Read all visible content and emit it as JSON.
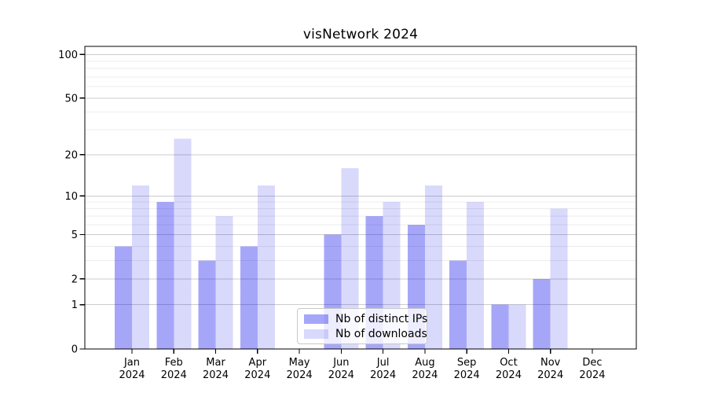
{
  "chart_data": {
    "type": "bar",
    "title": "visNetwork 2024",
    "categories": [
      "Jan",
      "Feb",
      "Mar",
      "Apr",
      "May",
      "Jun",
      "Jul",
      "Aug",
      "Sep",
      "Oct",
      "Nov",
      "Dec"
    ],
    "year": "2024",
    "series": [
      {
        "name": "Nb of distinct IPs",
        "color": "rgba(0,0,238,0.35)",
        "apparent_hex": "#a6a6f9",
        "values": [
          4,
          9,
          3,
          4,
          0,
          5,
          7,
          6,
          3,
          1,
          2,
          0
        ]
      },
      {
        "name": "Nb of downloads",
        "color": "rgba(0,0,238,0.15)",
        "apparent_hex": "#d9d9fc",
        "values": [
          12,
          26,
          7,
          12,
          0,
          16,
          9,
          12,
          9,
          1,
          8,
          0
        ]
      }
    ],
    "xlabel": "",
    "ylabel": "",
    "yscale": "log1p",
    "ylim": [
      0,
      100
    ],
    "yticks": [
      0,
      1,
      2,
      5,
      10,
      20,
      50,
      100
    ],
    "yticks_minor": [
      3,
      4,
      6,
      7,
      8,
      9,
      30,
      40,
      60,
      70,
      80,
      90
    ],
    "grid": true,
    "legend_position": "lower-center",
    "colors": {
      "major_grid": "#cccccc",
      "minor_grid": "#ececec",
      "axis": "#000000",
      "background": "#ffffff"
    }
  }
}
